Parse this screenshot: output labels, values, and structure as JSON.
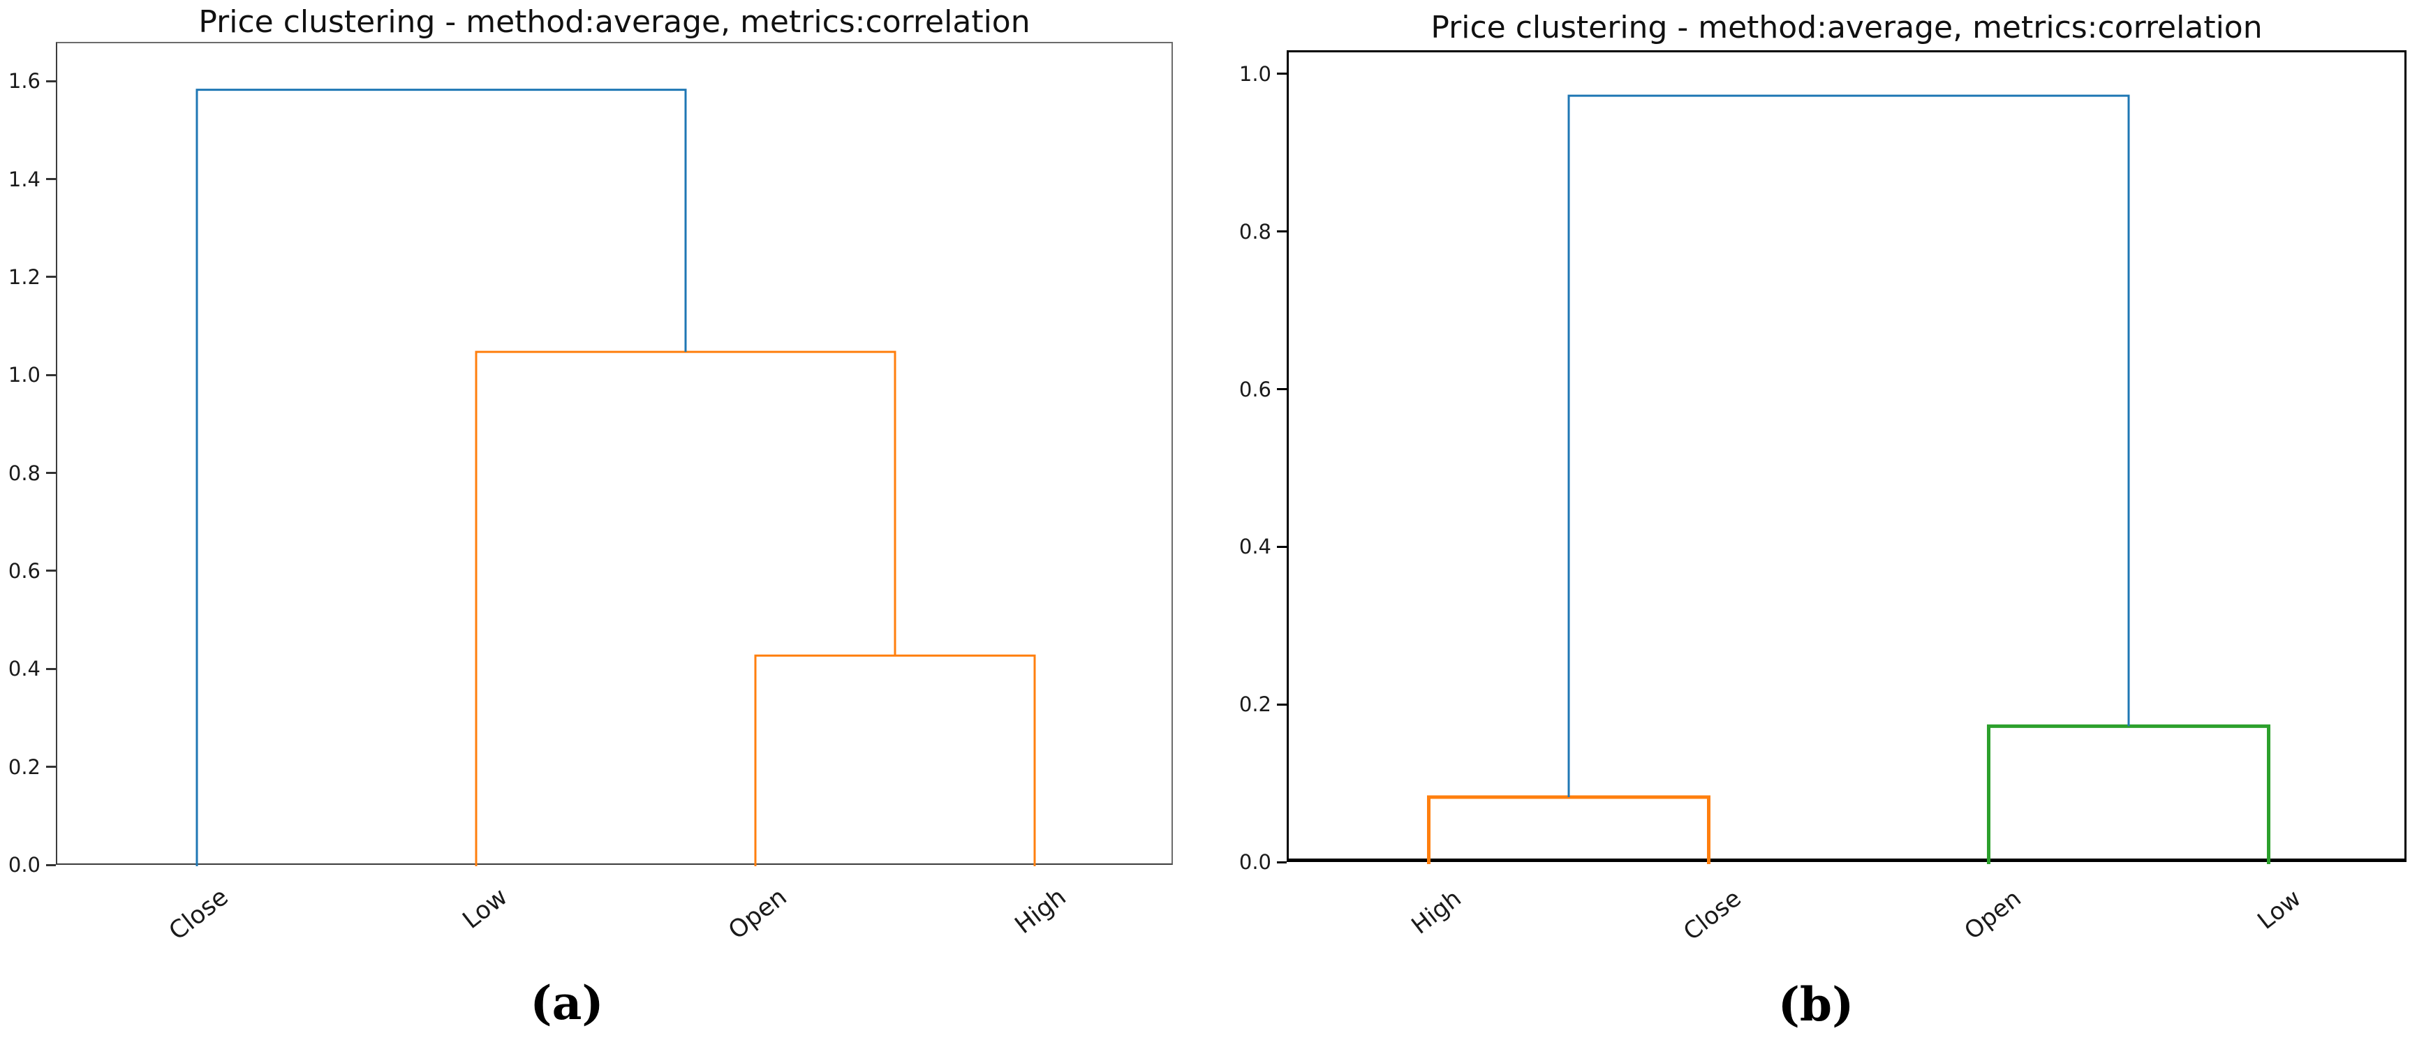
{
  "figure": {
    "background": "#ffffff",
    "panel_count": 2
  },
  "chart_data": [
    {
      "type": "dendrogram",
      "panel_label": "(a)",
      "title": "Price clustering - method:average, metrics:correlation",
      "orientation": "top",
      "grid": false,
      "xlim": [
        0,
        4
      ],
      "ylim": [
        0,
        1.68
      ],
      "leaves": [
        "Close",
        "Low",
        "Open",
        "High"
      ],
      "leaf_positions": [
        0.5,
        1.5,
        2.5,
        3.5
      ],
      "yticks": [
        0,
        0.2,
        0.4,
        0.6,
        0.8,
        1.0,
        1.2,
        1.4,
        1.6
      ],
      "ytick_labels": [
        "0.0",
        "0.2",
        "0.4",
        "0.6",
        "0.8",
        "1.0",
        "1.2",
        "1.4",
        "1.6"
      ],
      "link_colors": {
        "blue": "#1f77b4",
        "orange": "#ff7f0e"
      },
      "merges": [
        {
          "join": [
            "Open",
            "High"
          ],
          "height": 0.43,
          "x1": 2.5,
          "y1": 0,
          "x2": 3.5,
          "y2": 0,
          "color": "#ff7f0e"
        },
        {
          "join": [
            "Low",
            "Open+High"
          ],
          "height": 1.05,
          "x1": 1.5,
          "y1": 0,
          "x2": 3.0,
          "y2": 0.43,
          "color": "#ff7f0e"
        },
        {
          "join": [
            "Close",
            "Low+Open+High"
          ],
          "height": 1.585,
          "x1": 0.5,
          "y1": 0,
          "x2": 2.25,
          "y2": 1.05,
          "color": "#1f77b4"
        }
      ]
    },
    {
      "type": "dendrogram",
      "panel_label": "(b)",
      "title": "Price clustering - method:average, metrics:correlation",
      "orientation": "top",
      "grid": false,
      "xlim": [
        0,
        4
      ],
      "ylim": [
        0,
        1.03
      ],
      "leaves": [
        "High",
        "Close",
        "Open",
        "Low"
      ],
      "leaf_positions": [
        0.5,
        1.5,
        2.5,
        3.5
      ],
      "yticks": [
        0,
        0.2,
        0.4,
        0.6,
        0.8,
        1.0
      ],
      "ytick_labels": [
        "0.0",
        "0.2",
        "0.4",
        "0.6",
        "0.8",
        "1.0"
      ],
      "link_colors": {
        "blue": "#1f77b4",
        "orange": "#ff7f0e",
        "green": "#2ca02c"
      },
      "merges": [
        {
          "join": [
            "High",
            "Close"
          ],
          "height": 0.085,
          "x1": 0.5,
          "y1": 0,
          "x2": 1.5,
          "y2": 0,
          "color": "#ff7f0e"
        },
        {
          "join": [
            "Open",
            "Low"
          ],
          "height": 0.175,
          "x1": 2.5,
          "y1": 0,
          "x2": 3.5,
          "y2": 0,
          "color": "#2ca02c"
        },
        {
          "join": [
            "High+Close",
            "Open+Low"
          ],
          "height": 0.975,
          "x1": 1.0,
          "y1": 0.085,
          "x2": 3.0,
          "y2": 0.175,
          "color": "#1f77b4"
        }
      ]
    }
  ]
}
